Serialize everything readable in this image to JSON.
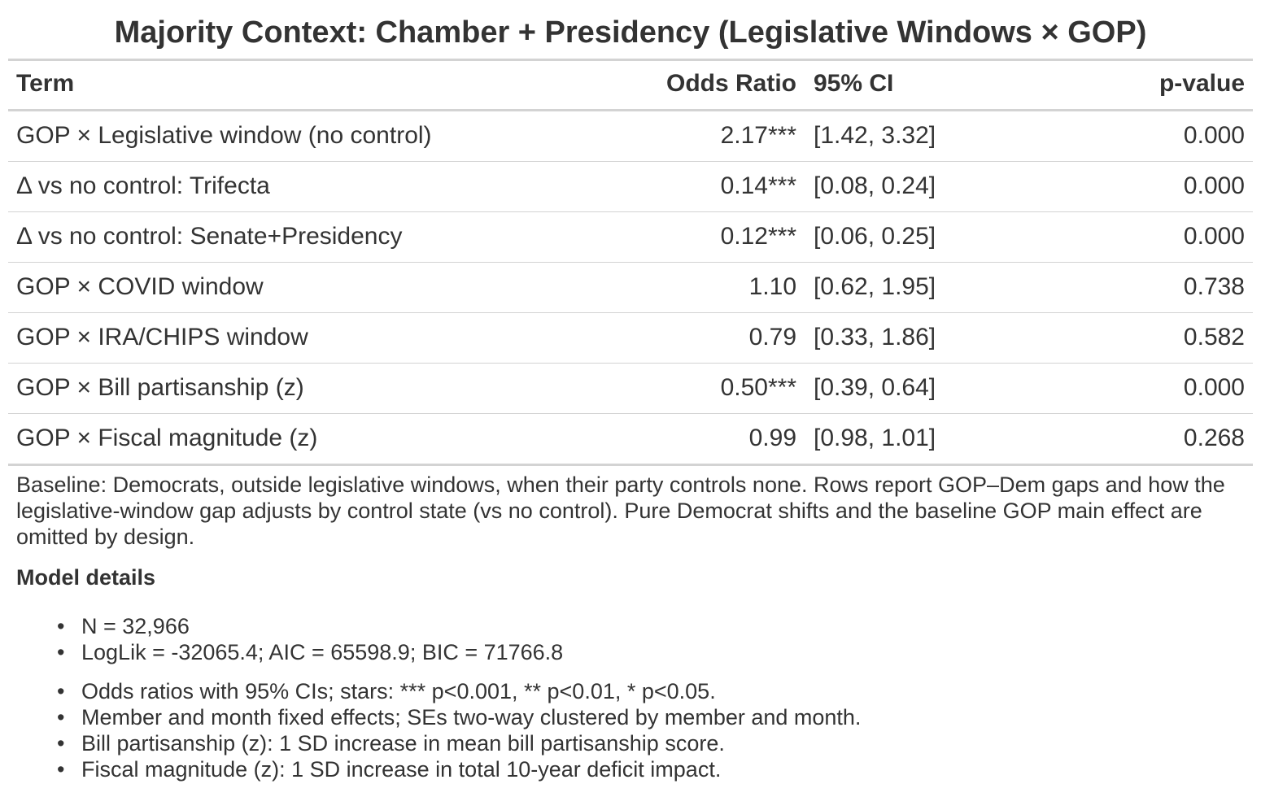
{
  "title": "Majority Context: Chamber + Presidency (Legislative Windows × GOP)",
  "table": {
    "headers": {
      "term": "Term",
      "odds_ratio": "Odds Ratio",
      "ci": "95% CI",
      "p_value": "p-value"
    },
    "rows": [
      {
        "term": "GOP × Legislative window (no control)",
        "odds_ratio": "2.17***",
        "ci": "[1.42, 3.32]",
        "p_value": "0.000"
      },
      {
        "term": "Δ vs no control: Trifecta",
        "odds_ratio": "0.14***",
        "ci": "[0.08, 0.24]",
        "p_value": "0.000"
      },
      {
        "term": "Δ vs no control: Senate+Presidency",
        "odds_ratio": "0.12***",
        "ci": "[0.06, 0.25]",
        "p_value": "0.000"
      },
      {
        "term": "GOP × COVID window",
        "odds_ratio": "1.10",
        "ci": "[0.62, 1.95]",
        "p_value": "0.738"
      },
      {
        "term": "GOP × IRA/CHIPS window",
        "odds_ratio": "0.79",
        "ci": "[0.33, 1.86]",
        "p_value": "0.582"
      },
      {
        "term": "GOP × Bill partisanship (z)",
        "odds_ratio": "0.50***",
        "ci": "[0.39, 0.64]",
        "p_value": "0.000"
      },
      {
        "term": "GOP × Fiscal magnitude (z)",
        "odds_ratio": "0.99",
        "ci": "[0.98, 1.01]",
        "p_value": "0.268"
      }
    ]
  },
  "footnote": "Baseline: Democrats, outside legislative windows, when their party controls none. Rows report GOP–Dem gaps and how the legislative-window gap adjusts by control state (vs no control). Pure Democrat shifts and the baseline GOP main effect are omitted by design.",
  "model_details": {
    "heading": "Model details",
    "stats": [
      "N = 32,966",
      "LogLik = -32065.4; AIC = 65598.9; BIC = 71766.8"
    ],
    "notes": [
      "Odds ratios with 95% CIs; stars: *** p<0.001, ** p<0.01, * p<0.05.",
      "Member and month fixed effects; SEs two-way clustered by member and month.",
      "Bill partisanship (z): 1 SD increase in mean bill partisanship score.",
      "Fiscal magnitude (z): 1 SD increase in total 10-year deficit impact."
    ]
  },
  "colors": {
    "text": "#333333",
    "rule": "#d3d3d3",
    "background": "#ffffff"
  }
}
